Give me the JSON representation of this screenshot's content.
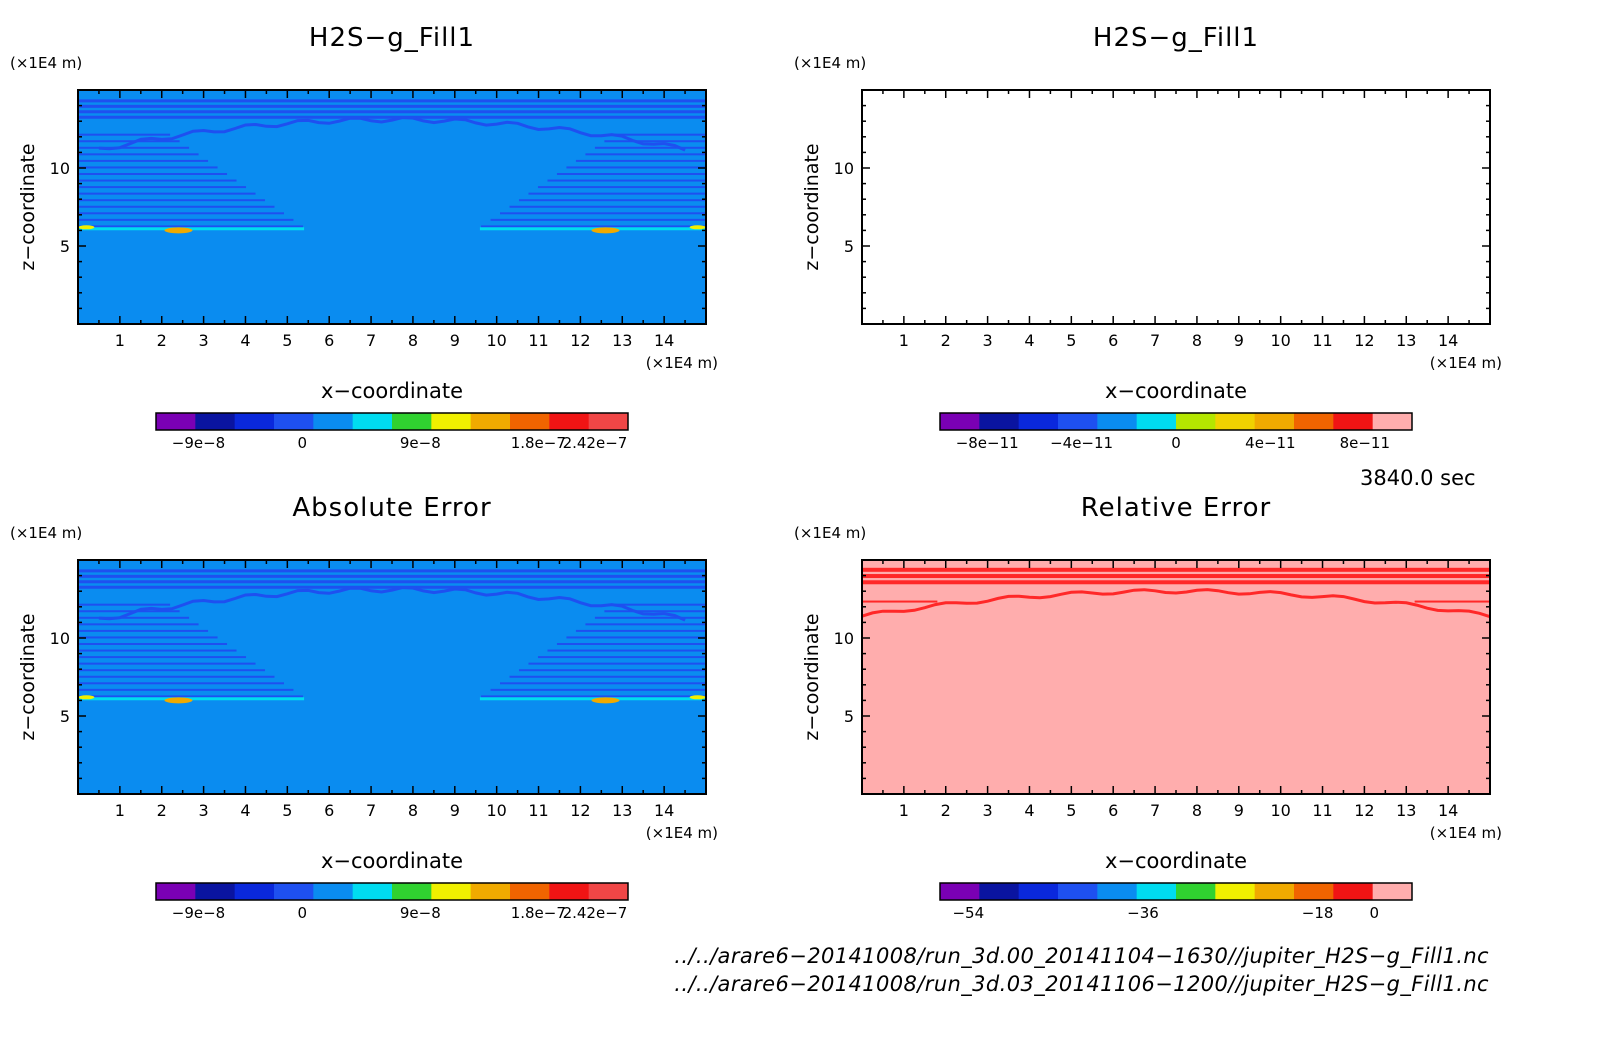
{
  "colors": {
    "field_bg": "#0a8cf0",
    "contour_blue": "#1e50f0",
    "rel_bg": "#ffadad",
    "rel_contour": "#ff2828",
    "palette": [
      "#7a00b4",
      "#0a14a0",
      "#0a28dc",
      "#1e50f0",
      "#0a8cf0",
      "#00dcf0",
      "#30d230",
      "#f0f000",
      "#f0aa00",
      "#f06400",
      "#f01414",
      "#f04646",
      "#ffadad"
    ]
  },
  "chart_data": [
    {
      "type": "heatmap",
      "title": "H2S−g_Fill1",
      "xlabel": "x−coordinate",
      "ylabel": "z−coordinate",
      "x_unit": "(×1E4 m)",
      "z_unit": "(×1E4 m)",
      "xlim": [
        0,
        15
      ],
      "zlim": [
        0,
        15
      ],
      "xticks": [
        "1",
        "2",
        "3",
        "4",
        "5",
        "6",
        "7",
        "8",
        "9",
        "10",
        "11",
        "12",
        "13",
        "14"
      ],
      "zticks": [
        "5",
        "10"
      ],
      "colorbar": {
        "colors": [
          "#7a00b4",
          "#0a14a0",
          "#0a28dc",
          "#1e50f0",
          "#0a8cf0",
          "#00dcf0",
          "#30d230",
          "#f0f000",
          "#f0aa00",
          "#f06400",
          "#f01414",
          "#f04646"
        ],
        "labels": [
          "−9e−8",
          "0",
          "9e−8",
          "1.8e−7",
          "2.42e−7"
        ]
      }
    },
    {
      "type": "heatmap",
      "title": "H2S−g_Fill1",
      "xlabel": "x−coordinate",
      "ylabel": "z−coordinate",
      "x_unit": "(×1E4 m)",
      "z_unit": "(×1E4 m)",
      "xlim": [
        0,
        15
      ],
      "zlim": [
        0,
        15
      ],
      "xticks": [
        "1",
        "2",
        "3",
        "4",
        "5",
        "6",
        "7",
        "8",
        "9",
        "10",
        "11",
        "12",
        "13",
        "14"
      ],
      "zticks": [
        "5",
        "10"
      ],
      "colorbar": {
        "colors": [
          "#7a00b4",
          "#0a14a0",
          "#0a28dc",
          "#1e50f0",
          "#0a8cf0",
          "#00dcf0",
          "#b4e600",
          "#f0d200",
          "#f0aa00",
          "#f06400",
          "#f01414",
          "#ffadad"
        ],
        "labels": [
          "−8e−11",
          "−4e−11",
          "0",
          "4e−11",
          "8e−11"
        ]
      }
    },
    {
      "type": "heatmap",
      "title": "Absolute Error",
      "xlabel": "x−coordinate",
      "ylabel": "z−coordinate",
      "x_unit": "(×1E4 m)",
      "z_unit": "(×1E4 m)",
      "xlim": [
        0,
        15
      ],
      "zlim": [
        0,
        15
      ],
      "xticks": [
        "1",
        "2",
        "3",
        "4",
        "5",
        "6",
        "7",
        "8",
        "9",
        "10",
        "11",
        "12",
        "13",
        "14"
      ],
      "zticks": [
        "5",
        "10"
      ],
      "colorbar": {
        "colors": [
          "#7a00b4",
          "#0a14a0",
          "#0a28dc",
          "#1e50f0",
          "#0a8cf0",
          "#00dcf0",
          "#30d230",
          "#f0f000",
          "#f0aa00",
          "#f06400",
          "#f01414",
          "#f04646"
        ],
        "labels": [
          "−9e−8",
          "0",
          "9e−8",
          "1.8e−7",
          "2.42e−7"
        ]
      }
    },
    {
      "type": "heatmap",
      "title": "Relative Error",
      "xlabel": "x−coordinate",
      "ylabel": "z−coordinate",
      "x_unit": "(×1E4 m)",
      "z_unit": "(×1E4 m)",
      "xlim": [
        0,
        15
      ],
      "zlim": [
        0,
        15
      ],
      "xticks": [
        "1",
        "2",
        "3",
        "4",
        "5",
        "6",
        "7",
        "8",
        "9",
        "10",
        "11",
        "12",
        "13",
        "14"
      ],
      "zticks": [
        "5",
        "10"
      ],
      "colorbar": {
        "colors": [
          "#7a00b4",
          "#0a14a0",
          "#0a28dc",
          "#1e50f0",
          "#0a8cf0",
          "#00dcf0",
          "#30d230",
          "#f0f000",
          "#f0aa00",
          "#f06400",
          "#f01414",
          "#ffadad"
        ],
        "labels": [
          "−54",
          "−36",
          "−18",
          "0"
        ]
      }
    }
  ],
  "time_label": "3840.0 sec",
  "file_paths": [
    "../../arare6−20141008/run_3d.00_20141104−1630//jupiter_H2S−g_Fill1.nc",
    "../../arare6−20141008/run_3d.03_20141106−1200//jupiter_H2S−g_Fill1.nc"
  ]
}
